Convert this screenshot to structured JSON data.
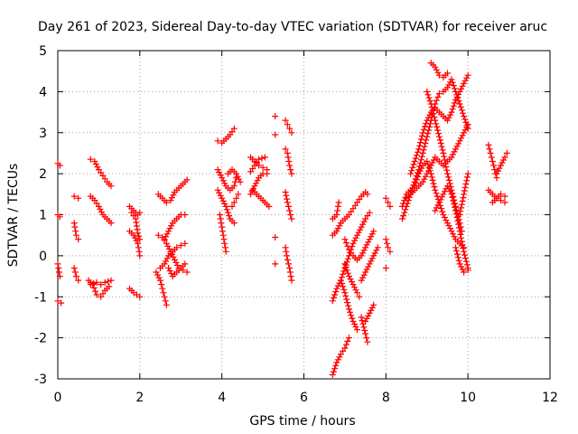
{
  "chart_data": {
    "type": "scatter",
    "title": "Day 261 of 2023, Sidereal Day-to-day VTEC variation (SDTVAR) for receiver aruc",
    "xlabel": "GPS time / hours",
    "ylabel": "SDTVAR / TECUs",
    "xlim": [
      0,
      12
    ],
    "ylim": [
      -3,
      5
    ],
    "xticks": [
      "0",
      "2",
      "4",
      "6",
      "8",
      "10",
      "12"
    ],
    "yticks": [
      "-3",
      "-2",
      "-1",
      "0",
      "1",
      "2",
      "3",
      "4",
      "5"
    ],
    "grid": true,
    "marker": "+",
    "color": "#ff0000",
    "tracks": [
      [
        [
          0.0,
          2.25
        ],
        [
          0.05,
          2.2
        ]
      ],
      [
        [
          0.0,
          1.0
        ],
        [
          0.05,
          0.95
        ]
      ],
      [
        [
          0.0,
          -0.2
        ],
        [
          0.05,
          -0.5
        ]
      ],
      [
        [
          0.0,
          -1.1
        ],
        [
          0.08,
          -1.15
        ]
      ],
      [
        [
          0.4,
          1.45
        ],
        [
          0.5,
          1.4
        ]
      ],
      [
        [
          0.4,
          0.8
        ],
        [
          0.45,
          0.5
        ],
        [
          0.5,
          0.4
        ]
      ],
      [
        [
          0.4,
          -0.3
        ],
        [
          0.45,
          -0.5
        ],
        [
          0.5,
          -0.6
        ]
      ],
      [
        [
          0.8,
          2.35
        ],
        [
          0.9,
          2.3
        ],
        [
          1.0,
          2.1
        ],
        [
          1.1,
          1.95
        ],
        [
          1.2,
          1.8
        ],
        [
          1.3,
          1.7
        ]
      ],
      [
        [
          0.8,
          1.45
        ],
        [
          0.9,
          1.35
        ],
        [
          1.0,
          1.2
        ],
        [
          1.1,
          1.0
        ],
        [
          1.2,
          0.9
        ],
        [
          1.3,
          0.8
        ]
      ],
      [
        [
          0.75,
          -0.6
        ],
        [
          0.85,
          -0.7
        ],
        [
          0.95,
          -0.95
        ],
        [
          1.05,
          -1.0
        ],
        [
          1.15,
          -0.85
        ],
        [
          1.25,
          -0.75
        ]
      ],
      [
        [
          0.8,
          -0.7
        ],
        [
          0.95,
          -0.65
        ],
        [
          1.05,
          -0.7
        ],
        [
          1.15,
          -0.65
        ],
        [
          1.3,
          -0.6
        ]
      ],
      [
        [
          1.75,
          1.2
        ],
        [
          1.85,
          1.1
        ],
        [
          1.95,
          1.0
        ],
        [
          2.0,
          1.05
        ]
      ],
      [
        [
          1.75,
          0.6
        ],
        [
          1.85,
          0.5
        ],
        [
          1.95,
          0.3
        ],
        [
          2.0,
          0.0
        ]
      ],
      [
        [
          1.75,
          -0.8
        ],
        [
          1.85,
          -0.9
        ],
        [
          2.0,
          -1.0
        ]
      ],
      [
        [
          1.8,
          1.05
        ],
        [
          1.9,
          0.9
        ],
        [
          1.95,
          0.55
        ],
        [
          2.0,
          0.4
        ]
      ],
      [
        [
          2.45,
          1.5
        ],
        [
          2.55,
          1.4
        ],
        [
          2.65,
          1.3
        ],
        [
          2.75,
          1.35
        ],
        [
          2.85,
          1.55
        ],
        [
          2.95,
          1.65
        ],
        [
          3.05,
          1.75
        ],
        [
          3.15,
          1.85
        ]
      ],
      [
        [
          2.45,
          0.5
        ],
        [
          2.55,
          0.45
        ],
        [
          2.65,
          0.3
        ],
        [
          2.75,
          0.1
        ],
        [
          2.85,
          -0.1
        ],
        [
          2.95,
          -0.3
        ],
        [
          3.05,
          -0.35
        ],
        [
          3.15,
          -0.4
        ]
      ],
      [
        [
          2.4,
          -0.4
        ],
        [
          2.5,
          -0.6
        ],
        [
          2.55,
          -0.8
        ],
        [
          2.6,
          -1.0
        ],
        [
          2.65,
          -1.2
        ]
      ],
      [
        [
          2.5,
          -0.3
        ],
        [
          2.6,
          -0.2
        ],
        [
          2.7,
          0.0
        ],
        [
          2.8,
          0.1
        ],
        [
          2.9,
          0.2
        ],
        [
          3.0,
          0.25
        ],
        [
          3.1,
          0.3
        ]
      ],
      [
        [
          2.6,
          0.4
        ],
        [
          2.7,
          0.6
        ],
        [
          2.8,
          0.8
        ],
        [
          2.9,
          0.9
        ],
        [
          3.0,
          1.0
        ],
        [
          3.1,
          1.0
        ]
      ],
      [
        [
          2.7,
          -0.3
        ],
        [
          2.8,
          -0.5
        ],
        [
          2.9,
          -0.4
        ],
        [
          3.0,
          -0.3
        ],
        [
          3.1,
          -0.2
        ]
      ],
      [
        [
          3.9,
          2.8
        ],
        [
          4.0,
          2.75
        ],
        [
          4.1,
          2.85
        ],
        [
          4.2,
          2.95
        ],
        [
          4.3,
          3.1
        ]
      ],
      [
        [
          3.9,
          2.1
        ],
        [
          4.0,
          1.9
        ],
        [
          4.1,
          1.7
        ],
        [
          4.2,
          1.6
        ],
        [
          4.3,
          1.7
        ],
        [
          4.35,
          1.9
        ]
      ],
      [
        [
          3.9,
          1.6
        ],
        [
          4.0,
          1.4
        ],
        [
          4.1,
          1.2
        ],
        [
          4.2,
          0.9
        ],
        [
          4.3,
          0.8
        ]
      ],
      [
        [
          3.95,
          1.0
        ],
        [
          4.0,
          0.7
        ],
        [
          4.05,
          0.4
        ],
        [
          4.1,
          0.1
        ]
      ],
      [
        [
          4.25,
          1.2
        ],
        [
          4.3,
          1.3
        ],
        [
          4.35,
          1.4
        ],
        [
          4.4,
          1.5
        ]
      ],
      [
        [
          4.15,
          2.0
        ],
        [
          4.25,
          2.1
        ],
        [
          4.35,
          2.0
        ],
        [
          4.45,
          1.8
        ]
      ],
      [
        [
          4.7,
          2.4
        ],
        [
          4.8,
          2.3
        ],
        [
          4.9,
          2.2
        ],
        [
          5.0,
          2.15
        ],
        [
          5.1,
          2.1
        ]
      ],
      [
        [
          4.7,
          1.5
        ],
        [
          4.8,
          1.7
        ],
        [
          4.9,
          1.9
        ],
        [
          5.0,
          2.0
        ],
        [
          5.1,
          2.0
        ]
      ],
      [
        [
          4.75,
          1.6
        ],
        [
          4.85,
          1.5
        ],
        [
          4.95,
          1.4
        ],
        [
          5.05,
          1.3
        ],
        [
          5.15,
          1.2
        ]
      ],
      [
        [
          4.7,
          2.05
        ],
        [
          4.8,
          2.2
        ],
        [
          4.9,
          2.35
        ],
        [
          5.05,
          2.4
        ]
      ],
      [
        [
          5.3,
          3.4
        ]
      ],
      [
        [
          5.3,
          2.95
        ]
      ],
      [
        [
          5.3,
          0.45
        ]
      ],
      [
        [
          5.3,
          -0.2
        ]
      ],
      [
        [
          5.55,
          3.3
        ],
        [
          5.6,
          3.2
        ],
        [
          5.65,
          3.1
        ],
        [
          5.7,
          3.0
        ]
      ],
      [
        [
          5.55,
          2.6
        ],
        [
          5.6,
          2.5
        ],
        [
          5.65,
          2.2
        ],
        [
          5.7,
          2.0
        ]
      ],
      [
        [
          5.55,
          1.55
        ],
        [
          5.6,
          1.3
        ],
        [
          5.65,
          1.1
        ],
        [
          5.7,
          0.9
        ]
      ],
      [
        [
          5.55,
          0.2
        ],
        [
          5.6,
          -0.1
        ],
        [
          5.65,
          -0.3
        ],
        [
          5.7,
          -0.6
        ]
      ],
      [
        [
          6.7,
          -2.9
        ],
        [
          6.8,
          -2.6
        ],
        [
          6.9,
          -2.4
        ],
        [
          7.0,
          -2.25
        ],
        [
          7.1,
          -2.0
        ]
      ],
      [
        [
          6.7,
          -1.1
        ],
        [
          6.8,
          -0.8
        ],
        [
          6.9,
          -0.6
        ],
        [
          7.0,
          -0.3
        ],
        [
          7.1,
          0.0
        ],
        [
          7.2,
          0.3
        ],
        [
          7.3,
          0.5
        ],
        [
          7.4,
          0.7
        ],
        [
          7.5,
          0.9
        ],
        [
          7.6,
          1.05
        ]
      ],
      [
        [
          6.7,
          0.5
        ],
        [
          6.8,
          0.6
        ],
        [
          6.9,
          0.8
        ],
        [
          7.0,
          0.9
        ],
        [
          7.1,
          1.0
        ],
        [
          7.2,
          1.15
        ],
        [
          7.3,
          1.3
        ],
        [
          7.4,
          1.45
        ],
        [
          7.5,
          1.55
        ],
        [
          7.55,
          1.5
        ]
      ],
      [
        [
          6.7,
          0.9
        ],
        [
          6.8,
          1.0
        ],
        [
          6.85,
          1.3
        ]
      ],
      [
        [
          6.9,
          -0.6
        ],
        [
          7.0,
          -0.9
        ],
        [
          7.1,
          -1.3
        ],
        [
          7.2,
          -1.6
        ],
        [
          7.3,
          -1.8
        ]
      ],
      [
        [
          7.0,
          0.4
        ],
        [
          7.1,
          0.15
        ],
        [
          7.2,
          0.0
        ],
        [
          7.3,
          -0.1
        ],
        [
          7.4,
          0.0
        ],
        [
          7.5,
          0.2
        ],
        [
          7.6,
          0.4
        ],
        [
          7.7,
          0.6
        ]
      ],
      [
        [
          7.0,
          -0.2
        ],
        [
          7.1,
          -0.5
        ],
        [
          7.2,
          -0.7
        ],
        [
          7.3,
          -0.9
        ],
        [
          7.35,
          -1.0
        ]
      ],
      [
        [
          7.4,
          -0.6
        ],
        [
          7.5,
          -0.4
        ],
        [
          7.6,
          -0.2
        ],
        [
          7.7,
          0.0
        ],
        [
          7.8,
          0.2
        ]
      ],
      [
        [
          7.4,
          -1.5
        ],
        [
          7.5,
          -1.9
        ],
        [
          7.55,
          -2.1
        ]
      ],
      [
        [
          7.5,
          -1.6
        ],
        [
          7.6,
          -1.4
        ],
        [
          7.7,
          -1.2
        ]
      ],
      [
        [
          8.0,
          1.4
        ],
        [
          8.05,
          1.3
        ],
        [
          8.1,
          1.2
        ]
      ],
      [
        [
          8.0,
          0.4
        ],
        [
          8.05,
          0.2
        ],
        [
          8.1,
          0.1
        ]
      ],
      [
        [
          8.0,
          -0.3
        ]
      ],
      [
        [
          8.4,
          0.9
        ],
        [
          8.5,
          1.2
        ],
        [
          8.6,
          1.5
        ],
        [
          8.7,
          1.8
        ],
        [
          8.8,
          2.1
        ],
        [
          8.9,
          2.5
        ],
        [
          9.0,
          2.9
        ],
        [
          9.1,
          3.3
        ],
        [
          9.2,
          3.7
        ],
        [
          9.3,
          3.95
        ],
        [
          9.4,
          4.0
        ],
        [
          9.5,
          4.1
        ],
        [
          9.6,
          4.3
        ],
        [
          9.7,
          4.0
        ],
        [
          9.8,
          3.7
        ],
        [
          9.9,
          3.4
        ],
        [
          10.0,
          3.1
        ]
      ],
      [
        [
          8.4,
          1.2
        ],
        [
          8.5,
          1.5
        ],
        [
          8.6,
          1.6
        ],
        [
          8.7,
          1.7
        ],
        [
          8.8,
          2.0
        ],
        [
          8.9,
          2.2
        ],
        [
          9.0,
          2.3
        ],
        [
          9.1,
          2.0
        ],
        [
          9.2,
          1.6
        ],
        [
          9.3,
          1.3
        ],
        [
          9.4,
          1.0
        ],
        [
          9.5,
          0.8
        ],
        [
          9.6,
          0.6
        ],
        [
          9.7,
          0.4
        ],
        [
          9.8,
          0.3
        ],
        [
          9.9,
          0.2
        ]
      ],
      [
        [
          8.5,
          1.4
        ],
        [
          8.6,
          1.5
        ],
        [
          8.7,
          1.6
        ],
        [
          8.8,
          1.7
        ],
        [
          8.9,
          1.8
        ],
        [
          9.0,
          2.0
        ],
        [
          9.1,
          2.2
        ],
        [
          9.2,
          2.4
        ],
        [
          9.3,
          2.3
        ],
        [
          9.4,
          2.2
        ],
        [
          9.5,
          2.3
        ],
        [
          9.6,
          2.4
        ],
        [
          9.7,
          2.6
        ],
        [
          9.8,
          2.8
        ],
        [
          9.9,
          3.0
        ],
        [
          10.0,
          3.2
        ]
      ],
      [
        [
          8.6,
          2.0
        ],
        [
          8.7,
          2.3
        ],
        [
          8.8,
          2.6
        ],
        [
          8.9,
          3.0
        ],
        [
          9.0,
          3.3
        ],
        [
          9.1,
          3.5
        ],
        [
          9.2,
          3.6
        ],
        [
          9.3,
          3.5
        ],
        [
          9.4,
          3.4
        ],
        [
          9.5,
          3.3
        ],
        [
          9.6,
          3.5
        ],
        [
          9.7,
          3.8
        ],
        [
          9.8,
          4.0
        ],
        [
          9.9,
          4.2
        ],
        [
          10.0,
          4.4
        ]
      ],
      [
        [
          9.1,
          4.7
        ],
        [
          9.2,
          4.6
        ],
        [
          9.3,
          4.4
        ],
        [
          9.4,
          4.35
        ],
        [
          9.5,
          4.45
        ]
      ],
      [
        [
          9.0,
          4.0
        ],
        [
          9.1,
          3.7
        ],
        [
          9.2,
          3.3
        ],
        [
          9.3,
          2.9
        ],
        [
          9.4,
          2.5
        ],
        [
          9.5,
          2.0
        ],
        [
          9.6,
          1.6
        ],
        [
          9.7,
          1.2
        ],
        [
          9.8,
          0.8
        ],
        [
          9.85,
          0.6
        ]
      ],
      [
        [
          9.2,
          1.1
        ],
        [
          9.3,
          1.3
        ],
        [
          9.4,
          1.5
        ],
        [
          9.5,
          1.7
        ],
        [
          9.6,
          1.5
        ],
        [
          9.7,
          1.1
        ],
        [
          9.8,
          0.6
        ],
        [
          9.9,
          0.1
        ],
        [
          10.0,
          -0.3
        ]
      ],
      [
        [
          9.7,
          0.2
        ],
        [
          9.8,
          -0.2
        ],
        [
          9.9,
          -0.4
        ],
        [
          10.0,
          -0.35
        ]
      ],
      [
        [
          9.8,
          1.0
        ],
        [
          9.9,
          1.5
        ],
        [
          10.0,
          2.0
        ]
      ],
      [
        [
          10.5,
          2.7
        ],
        [
          10.55,
          2.5
        ],
        [
          10.6,
          2.3
        ],
        [
          10.65,
          2.1
        ],
        [
          10.7,
          1.9
        ]
      ],
      [
        [
          10.5,
          1.6
        ],
        [
          10.6,
          1.5
        ],
        [
          10.7,
          1.4
        ],
        [
          10.8,
          1.35
        ],
        [
          10.9,
          1.3
        ]
      ],
      [
        [
          10.6,
          1.3
        ],
        [
          10.7,
          1.4
        ],
        [
          10.8,
          1.5
        ],
        [
          10.9,
          1.45
        ]
      ],
      [
        [
          10.7,
          2.0
        ],
        [
          10.8,
          2.2
        ],
        [
          10.9,
          2.4
        ],
        [
          10.95,
          2.5
        ]
      ]
    ]
  }
}
